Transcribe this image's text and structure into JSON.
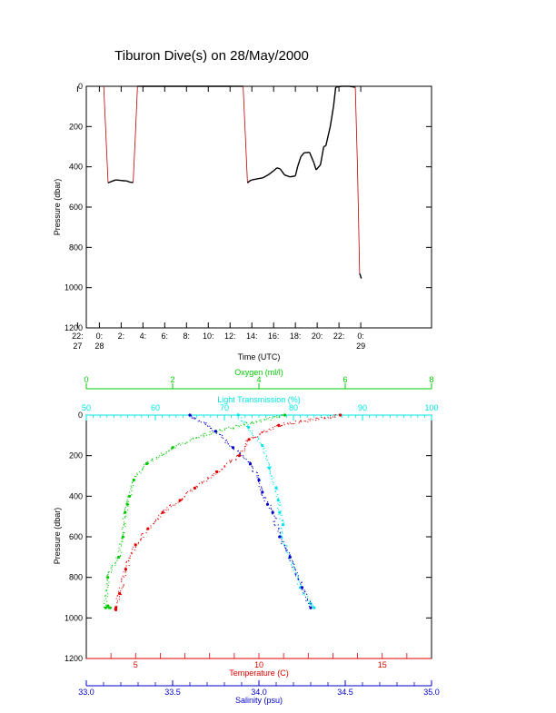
{
  "title": "Tiburon Dive(s) on 28/May/2000",
  "colors": {
    "axis": "#000000",
    "oxygen": "#00c800",
    "light": "#00e6e6",
    "temperature": "#e00000",
    "salinity": "#0000c8",
    "pressure_trace": "#000000",
    "pressure_trace_fast": "#c00000"
  },
  "chart_data": [
    {
      "type": "line",
      "title": "Tiburon Dive(s) on 28/May/2000",
      "xlabel": "Time (UTC)",
      "ylabel": "Pressure (dbar)",
      "xlim": [
        -1.2,
        30.5
      ],
      "ylim": [
        1200,
        0
      ],
      "y_ticks": [
        "0",
        "200",
        "400",
        "600",
        "800",
        "1000",
        "1200"
      ],
      "x_ticks": [
        {
          "top": "22:",
          "bottom": "27"
        },
        {
          "top": "0:",
          "bottom": "28"
        },
        {
          "top": "2:",
          "bottom": ""
        },
        {
          "top": "4:",
          "bottom": ""
        },
        {
          "top": "6:",
          "bottom": ""
        },
        {
          "top": "8:",
          "bottom": ""
        },
        {
          "top": "10:",
          "bottom": ""
        },
        {
          "top": "12:",
          "bottom": ""
        },
        {
          "top": "14:",
          "bottom": ""
        },
        {
          "top": "16:",
          "bottom": ""
        },
        {
          "top": "18:",
          "bottom": ""
        },
        {
          "top": "20:",
          "bottom": ""
        },
        {
          "top": "22:",
          "bottom": ""
        },
        {
          "top": "0:",
          "bottom": "29"
        }
      ],
      "x_tick_hours": [
        -2,
        0,
        2,
        4,
        6,
        8,
        10,
        12,
        14,
        16,
        18,
        20,
        22,
        24
      ],
      "grid": false,
      "series": [
        {
          "x": [
            0.4,
            0.6,
            0.8,
            1.0,
            1.5,
            2.0,
            2.5,
            2.8,
            3.1,
            3.3,
            3.5,
            4,
            6,
            8,
            10,
            12,
            13.2,
            13.4,
            13.6,
            13.8,
            14.0,
            14.5,
            15.0,
            15.5,
            16.0,
            16.3,
            16.6,
            17.0,
            17.5,
            18.0,
            18.2,
            18.5,
            18.8,
            19.3,
            19.7,
            19.9,
            20.3,
            20.6,
            20.8,
            21.2,
            21.5,
            21.7,
            22.2,
            23.0,
            23.5,
            23.7,
            23.9,
            24.0,
            24.05
          ],
          "y": [
            0,
            240,
            480,
            475,
            465,
            468,
            470,
            476,
            478,
            250,
            0,
            0,
            0,
            0,
            0,
            0,
            0,
            240,
            480,
            470,
            465,
            460,
            455,
            440,
            420,
            405,
            410,
            440,
            450,
            445,
            400,
            350,
            330,
            328,
            380,
            415,
            390,
            300,
            295,
            200,
            100,
            5,
            0,
            0,
            5,
            400,
            930,
            945,
            955
          ]
        }
      ]
    },
    {
      "type": "scatter",
      "ylabel": "Pressure (dbar)",
      "ylim": [
        1200,
        0
      ],
      "y_ticks": [
        "0",
        "200",
        "400",
        "600",
        "800",
        "1000",
        "1200"
      ],
      "grid": false,
      "axes": {
        "oxygen": {
          "label": "Oxygen (ml/l)",
          "range": [
            0,
            8
          ],
          "ticks": [
            "0",
            "2",
            "4",
            "6",
            "8"
          ]
        },
        "light_transmission": {
          "label": "Light Transmission (%)",
          "range": [
            50,
            100
          ],
          "ticks": [
            "50",
            "60",
            "70",
            "80",
            "90",
            "100"
          ]
        },
        "temperature": {
          "label": "Temperature (C)",
          "range": [
            3,
            17
          ],
          "ticks": [
            "5",
            "10",
            "15"
          ],
          "tick_values": [
            5,
            10,
            15
          ]
        },
        "salinity": {
          "label": "Salinity (psu)",
          "range": [
            33.0,
            35.0
          ],
          "ticks": [
            "33.0",
            "33.5",
            "34.0",
            "34.5",
            "35.0"
          ]
        }
      },
      "series": [
        {
          "name": "Oxygen (ml/l)",
          "axis": "oxygen",
          "x": [
            4.6,
            3.0,
            2.0,
            1.4,
            1.1,
            1.0,
            0.95,
            0.9,
            0.85,
            0.75,
            0.5,
            0.45,
            0.55,
            0.5
          ],
          "y": [
            0,
            80,
            160,
            240,
            320,
            400,
            440,
            480,
            600,
            700,
            800,
            950,
            950,
            940
          ]
        },
        {
          "name": "Light Transmission (%)",
          "axis": "light_transmission",
          "x": [
            72,
            73.5,
            75.5,
            76.5,
            77.5,
            77.8,
            78,
            78.5,
            78.2,
            79.5,
            81,
            82.5,
            83
          ],
          "y": [
            0,
            60,
            150,
            260,
            360,
            420,
            480,
            540,
            600,
            700,
            850,
            930,
            950
          ]
        },
        {
          "name": "Temperature (C)",
          "axis": "temperature",
          "x": [
            13.3,
            10.8,
            9.6,
            9.2,
            8.3,
            7.4,
            6.8,
            6.1,
            5.5,
            5.0,
            4.6,
            4.35,
            4.2,
            4.2
          ],
          "y": [
            0,
            50,
            120,
            200,
            280,
            360,
            420,
            480,
            560,
            640,
            760,
            880,
            950,
            960
          ]
        },
        {
          "name": "Salinity (psu)",
          "axis": "salinity",
          "x": [
            33.6,
            33.75,
            33.85,
            33.95,
            34.0,
            34.02,
            34.05,
            34.08,
            34.12,
            34.18,
            34.25,
            34.3
          ],
          "y": [
            0,
            80,
            160,
            240,
            320,
            380,
            440,
            480,
            600,
            700,
            850,
            950
          ]
        }
      ]
    }
  ]
}
